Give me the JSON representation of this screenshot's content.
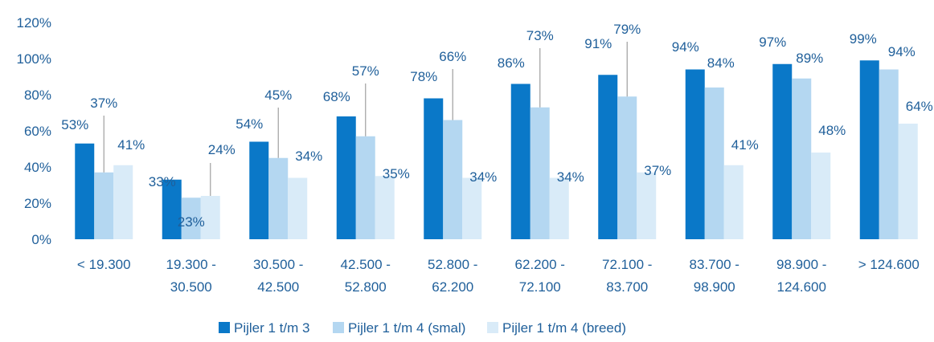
{
  "chart_data": {
    "type": "bar",
    "categories": [
      [
        "< 19.300"
      ],
      [
        "19.300 -",
        "30.500"
      ],
      [
        "30.500 -",
        "42.500"
      ],
      [
        "42.500 -",
        "52.800"
      ],
      [
        "52.800 -",
        "62.200"
      ],
      [
        "62.200 -",
        "72.100"
      ],
      [
        "72.100 -",
        "83.700"
      ],
      [
        "83.700 -",
        "98.900"
      ],
      [
        "98.900 -",
        "124.600"
      ],
      [
        "> 124.600"
      ]
    ],
    "series": [
      {
        "name": "Pijler 1 t/m 3",
        "color": "#0a78c8",
        "values": [
          53,
          33,
          54,
          68,
          78,
          86,
          91,
          94,
          97,
          99
        ]
      },
      {
        "name": "Pijler 1 t/m 4 (smal)",
        "color": "#b4d7f1",
        "values": [
          37,
          23,
          45,
          57,
          66,
          73,
          79,
          84,
          89,
          94
        ]
      },
      {
        "name": "Pijler 1 t/m 4 (breed)",
        "color": "#d9ebf8",
        "values": [
          41,
          24,
          34,
          35,
          34,
          34,
          37,
          41,
          48,
          64
        ]
      }
    ],
    "yticks": [
      "0%",
      "20%",
      "40%",
      "60%",
      "80%",
      "100%",
      "120%"
    ],
    "ylim": [
      0,
      120
    ],
    "value_suffix": "%",
    "grid": false,
    "legend_position": "bottom"
  }
}
